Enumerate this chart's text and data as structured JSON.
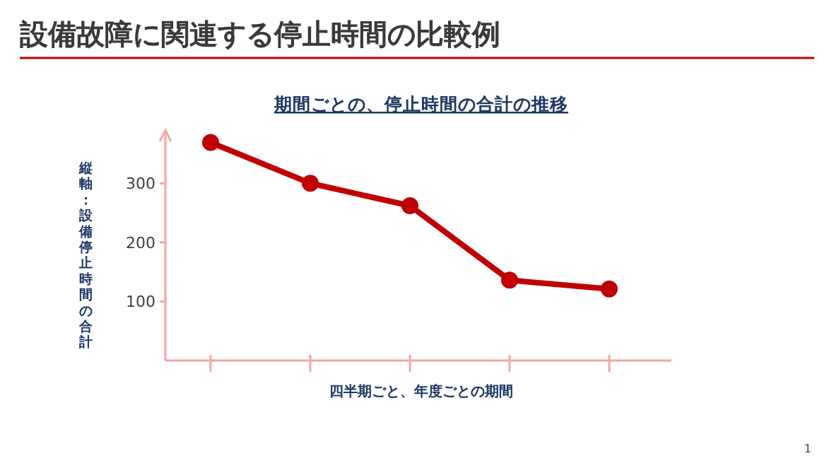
{
  "chart_data": {
    "type": "line",
    "title": "設備故障に関連する停止時間の比較例",
    "subtitle": "期間ごとの、停止時間の合計の推移",
    "xlabel": "四半期ごと、年度ごとの期間",
    "ylabel": "縦軸：設備停止時間の合計",
    "categories": [
      null,
      null,
      null,
      null,
      null
    ],
    "series": [
      {
        "color": "#c00000",
        "values": [
          369,
          300,
          262,
          136,
          121
        ]
      }
    ],
    "ylim": [
      0,
      390
    ],
    "yticks": [
      100,
      200,
      300
    ],
    "marker": "circle",
    "line_style": "solid",
    "grid": false,
    "annotations": [
      "1"
    ]
  }
}
